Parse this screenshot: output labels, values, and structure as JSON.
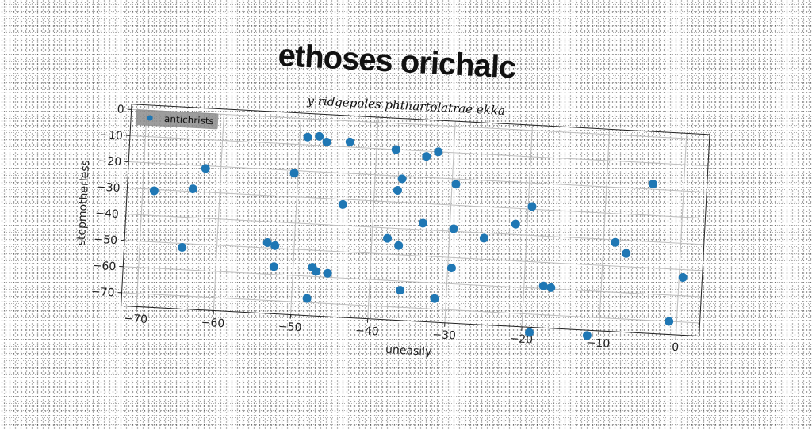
{
  "chart_data": {
    "type": "scatter",
    "title": "ethoses orichalc",
    "subtitle": "y ridgepoles phthartolatrae ekka",
    "xlabel": "uneasily",
    "ylabel": "stepmotherless",
    "xlim": [
      -72,
      3
    ],
    "ylim": [
      -75,
      2
    ],
    "xticks": [
      -70,
      -60,
      -50,
      -40,
      -30,
      -20,
      -10,
      0
    ],
    "yticks": [
      0,
      -10,
      -20,
      -30,
      -40,
      -50,
      -60,
      -70
    ],
    "grid": true,
    "legend_position": "top-left",
    "series": [
      {
        "name": "antichrists",
        "color": "#1f77b4",
        "points": [
          [
            -68.5,
            -30.5
          ],
          [
            -63.5,
            -29
          ],
          [
            -62,
            -21
          ],
          [
            -64.5,
            -51.5
          ],
          [
            -49,
            -7
          ],
          [
            -47.5,
            -6.5
          ],
          [
            -46.5,
            -8.5
          ],
          [
            -50.5,
            -21
          ],
          [
            -43.5,
            -8
          ],
          [
            -44,
            -32
          ],
          [
            -38,
            -44
          ],
          [
            -37.5,
            -10
          ],
          [
            -36.5,
            -21
          ],
          [
            -37,
            -25.5
          ],
          [
            -33.5,
            -12
          ],
          [
            -32,
            -10
          ],
          [
            -29.5,
            -22
          ],
          [
            -33.5,
            -37.5
          ],
          [
            -29.5,
            -39
          ],
          [
            -36.5,
            -46.5
          ],
          [
            -53.5,
            -48
          ],
          [
            -52.5,
            -49
          ],
          [
            -52.5,
            -57
          ],
          [
            -47.5,
            -56.5
          ],
          [
            -47,
            -58
          ],
          [
            -45.5,
            -58.5
          ],
          [
            -48,
            -68.5
          ],
          [
            -36,
            -63.5
          ],
          [
            -31.5,
            -66
          ],
          [
            -29.5,
            -54
          ],
          [
            -25.5,
            -42
          ],
          [
            -21.5,
            -36
          ],
          [
            -19.5,
            -29
          ],
          [
            -17.5,
            -59
          ],
          [
            -16.5,
            -59.5
          ],
          [
            -19,
            -77
          ],
          [
            -11.5,
            -77
          ],
          [
            -8.5,
            -41
          ],
          [
            -7,
            -45
          ],
          [
            -4,
            -18
          ],
          [
            -1,
            -70
          ],
          [
            0.5,
            -53
          ]
        ]
      }
    ]
  }
}
